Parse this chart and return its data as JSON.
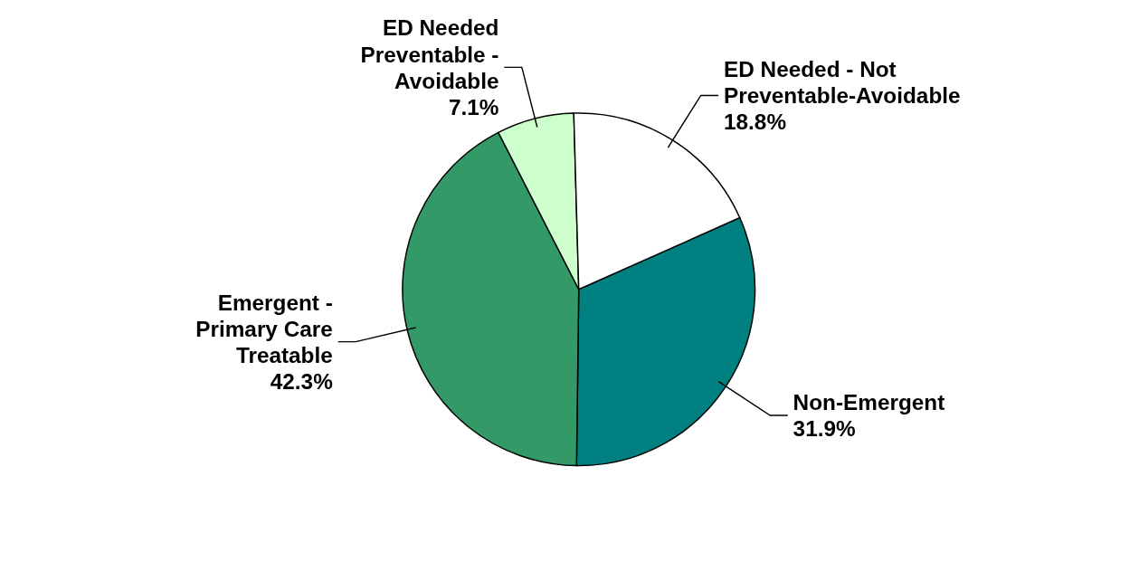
{
  "chart_data": {
    "type": "pie",
    "categories": [
      "Non-Emergent",
      "Emergent - Primary Care Treatable",
      "ED Needed Preventable - Avoidable",
      "ED Needed - Not Preventable-Avoidable"
    ],
    "values": [
      31.9,
      42.3,
      7.1,
      18.8
    ],
    "colors": [
      "#008080",
      "#339966",
      "#ccffcc",
      "#ffffff"
    ],
    "value_labels": [
      "31.9%",
      "42.3%",
      "7.1%",
      "18.8%"
    ]
  }
}
